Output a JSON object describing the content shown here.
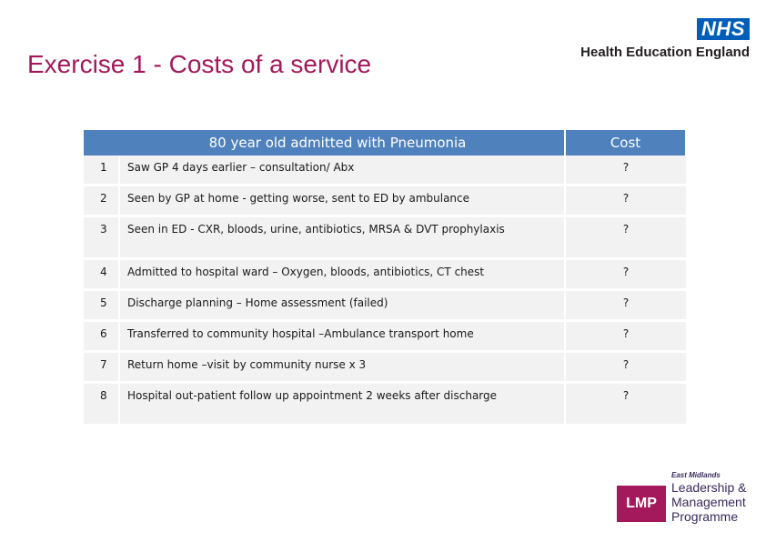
{
  "slide": {
    "title": "Exercise 1 - Costs of a service"
  },
  "nhs_logo": {
    "badge": "NHS",
    "organisation": "Health Education England"
  },
  "table": {
    "header_description": "80 year old admitted with Pneumonia",
    "header_cost": "Cost",
    "rows": [
      {
        "num": "1",
        "text": "Saw GP 4 days earlier – consultation/ Abx",
        "cost": "?"
      },
      {
        "num": "2",
        "text": "Seen by GP at home - getting worse, sent to ED by ambulance",
        "cost": "?"
      },
      {
        "num": "3",
        "text": "Seen in ED - CXR, bloods, urine, antibiotics, MRSA & DVT prophylaxis",
        "cost": "?"
      },
      {
        "num": "4",
        "text": "Admitted to hospital ward – Oxygen, bloods, antibiotics, CT chest",
        "cost": "?"
      },
      {
        "num": "5",
        "text": "Discharge planning – Home assessment (failed)",
        "cost": "?"
      },
      {
        "num": "6",
        "text": "Transferred to community hospital –Ambulance transport home",
        "cost": "?"
      },
      {
        "num": "7",
        "text": "Return home –visit by community nurse x 3",
        "cost": "?"
      },
      {
        "num": "8",
        "text": "Hospital out-patient follow up appointment 2 weeks after discharge",
        "cost": "?"
      }
    ]
  },
  "lmp_logo": {
    "badge": "LMP",
    "region": "East Midlands",
    "line1": "Leadership &",
    "line2": "Management",
    "line3": "Programme"
  },
  "colors": {
    "title": "#a3195b",
    "header_fill": "#4f81bd",
    "row_fill": "#f2f2f2",
    "nhs_blue": "#005eb8",
    "lmp_magenta": "#a3195b"
  }
}
